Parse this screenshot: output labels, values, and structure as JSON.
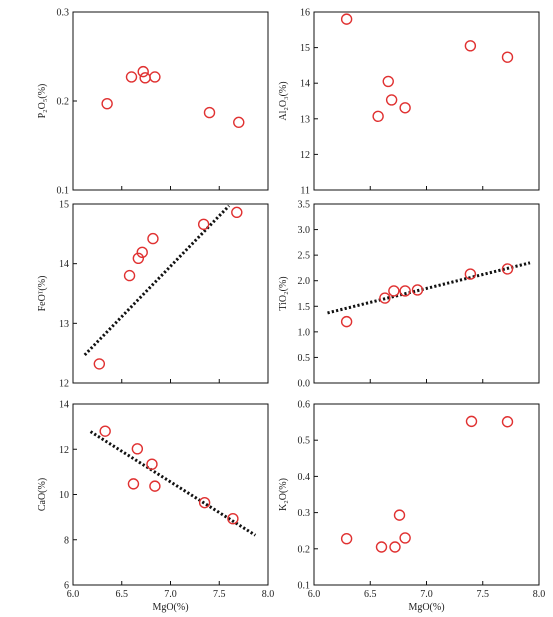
{
  "chart_data": [
    {
      "type": "scatter",
      "xlabel": "",
      "ylabel": "P₂O₅(%)",
      "xlim": [
        6.0,
        8.0
      ],
      "ylim": [
        0.1,
        0.3
      ],
      "x_ticks": [
        "6.0",
        "6.5",
        "7.0",
        "7.5",
        "8.0"
      ],
      "x_tick_labels_shown": false,
      "y_ticks": [
        "0.1",
        "0.2",
        "0.3"
      ],
      "series": [
        {
          "x": [
            6.35,
            6.6,
            6.72,
            6.74,
            6.84,
            7.4,
            7.7
          ],
          "y": [
            0.197,
            0.227,
            0.233,
            0.226,
            0.227,
            0.187,
            0.176
          ]
        }
      ],
      "trendline": null
    },
    {
      "type": "scatter",
      "xlabel": "",
      "ylabel": "Al₂O₃(%)",
      "xlim": [
        6.0,
        8.0
      ],
      "ylim": [
        11,
        16
      ],
      "x_ticks": [
        "6.0",
        "6.5",
        "7.0",
        "7.5",
        "8.0"
      ],
      "x_tick_labels_shown": false,
      "y_ticks": [
        "11",
        "12",
        "13",
        "14",
        "15",
        "16"
      ],
      "series": [
        {
          "x": [
            6.29,
            6.57,
            6.66,
            6.69,
            6.81,
            7.39,
            7.72
          ],
          "y": [
            15.8,
            13.07,
            14.05,
            13.53,
            13.31,
            15.05,
            14.73
          ]
        }
      ],
      "trendline": null
    },
    {
      "type": "scatter",
      "xlabel": "",
      "ylabel": "FeOᵀ(%)",
      "xlim": [
        6.0,
        8.0
      ],
      "ylim": [
        12,
        15
      ],
      "x_ticks": [
        "6.0",
        "6.5",
        "7.0",
        "7.5",
        "8.0"
      ],
      "x_tick_labels_shown": false,
      "y_ticks": [
        "12",
        "13",
        "14",
        "15"
      ],
      "series": [
        {
          "x": [
            6.27,
            6.58,
            6.67,
            6.71,
            6.82,
            7.34,
            7.68
          ],
          "y": [
            12.32,
            13.8,
            14.09,
            14.19,
            14.42,
            14.66,
            14.86
          ]
        }
      ],
      "trendline": {
        "x1": 6.12,
        "y1": 12.47,
        "x2": 7.6,
        "y2": 14.97
      }
    },
    {
      "type": "scatter",
      "xlabel": "",
      "ylabel": "TiO₂(%)",
      "xlim": [
        6.0,
        8.0
      ],
      "ylim": [
        0,
        3.5
      ],
      "x_ticks": [
        "6.0",
        "6.5",
        "7.0",
        "7.5",
        "8.0"
      ],
      "x_tick_labels_shown": false,
      "y_ticks": [
        "0.0",
        "0.5",
        "1.0",
        "1.5",
        "2.0",
        "2.5",
        "3.0",
        "3.5"
      ],
      "series": [
        {
          "x": [
            6.29,
            6.63,
            6.71,
            6.81,
            6.92,
            7.39,
            7.72
          ],
          "y": [
            1.2,
            1.66,
            1.8,
            1.8,
            1.82,
            2.13,
            2.23
          ]
        }
      ],
      "trendline": {
        "x1": 6.12,
        "y1": 1.37,
        "x2": 7.92,
        "y2": 2.35
      }
    },
    {
      "type": "scatter",
      "xlabel": "MgO(%)",
      "ylabel": "CaO(%)",
      "xlim": [
        6.0,
        8.0
      ],
      "ylim": [
        6,
        14
      ],
      "x_ticks": [
        "6.0",
        "6.5",
        "7.0",
        "7.5",
        "8.0"
      ],
      "x_tick_labels_shown": true,
      "y_ticks": [
        "6",
        "8",
        "10",
        "12",
        "14"
      ],
      "series": [
        {
          "x": [
            6.33,
            6.62,
            6.66,
            6.81,
            6.84,
            7.35,
            7.64
          ],
          "y": [
            12.8,
            10.47,
            12.02,
            11.34,
            10.37,
            9.64,
            8.93
          ]
        }
      ],
      "trendline": {
        "x1": 6.18,
        "y1": 12.78,
        "x2": 7.87,
        "y2": 8.2
      }
    },
    {
      "type": "scatter",
      "xlabel": "MgO(%)",
      "ylabel": "K₂O(%)",
      "xlim": [
        6.0,
        8.0
      ],
      "ylim": [
        0.1,
        0.6
      ],
      "x_ticks": [
        "6.0",
        "6.5",
        "7.0",
        "7.5",
        "8.0"
      ],
      "x_tick_labels_shown": true,
      "y_ticks": [
        "0.1",
        "0.2",
        "0.3",
        "0.4",
        "0.5",
        "0.6"
      ],
      "series": [
        {
          "x": [
            6.29,
            6.6,
            6.72,
            6.76,
            6.81,
            7.4,
            7.72
          ],
          "y": [
            0.228,
            0.205,
            0.205,
            0.293,
            0.23,
            0.552,
            0.551
          ]
        }
      ],
      "trendline": null
    }
  ],
  "colors": {
    "marker": "#e03131",
    "axis": "#111111",
    "trendline": "#111111",
    "text": "#222222"
  }
}
